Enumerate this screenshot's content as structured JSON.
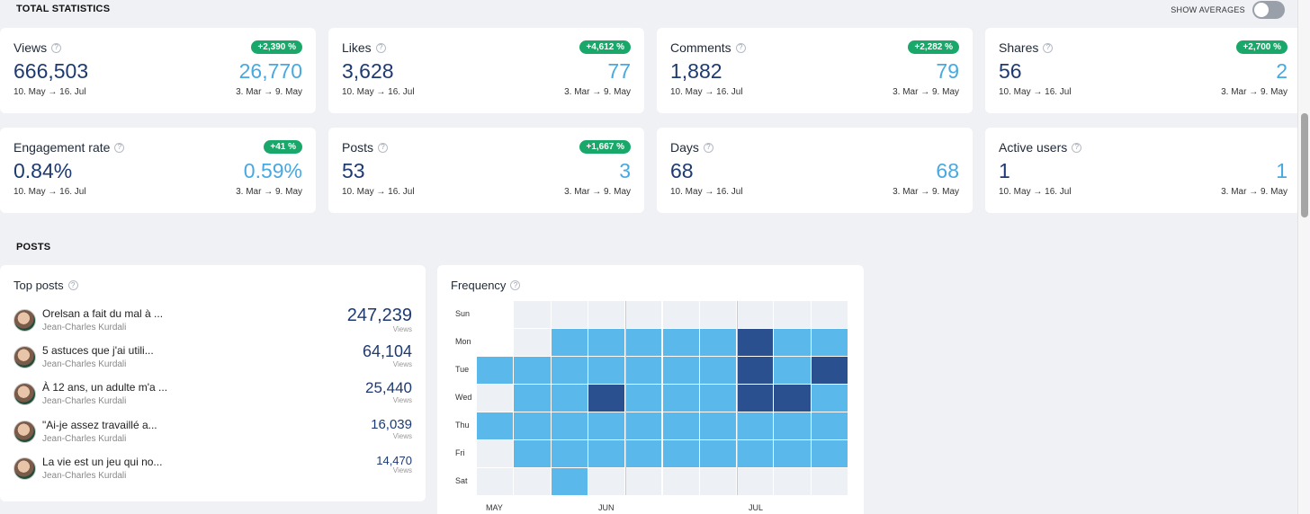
{
  "header": {
    "section_total": "TOTAL STATISTICS",
    "show_averages_label": "SHOW AVERAGES",
    "show_averages_on": false
  },
  "stats": [
    {
      "label": "Views",
      "badge": "+2,390 %",
      "value": "666,503",
      "prev_value": "26,770",
      "range": "10. May → 16. Jul",
      "prev_range": "3. Mar → 9. May"
    },
    {
      "label": "Likes",
      "badge": "+4,612 %",
      "value": "3,628",
      "prev_value": "77",
      "range": "10. May → 16. Jul",
      "prev_range": "3. Mar → 9. May"
    },
    {
      "label": "Comments",
      "badge": "+2,282 %",
      "value": "1,882",
      "prev_value": "79",
      "range": "10. May → 16. Jul",
      "prev_range": "3. Mar → 9. May"
    },
    {
      "label": "Shares",
      "badge": "+2,700 %",
      "value": "56",
      "prev_value": "2",
      "range": "10. May → 16. Jul",
      "prev_range": "3. Mar → 9. May"
    },
    {
      "label": "Engagement rate",
      "badge": "+41 %",
      "value": "0.84%",
      "prev_value": "0.59%",
      "range": "10. May → 16. Jul",
      "prev_range": "3. Mar → 9. May"
    },
    {
      "label": "Posts",
      "badge": "+1,667 %",
      "value": "53",
      "prev_value": "3",
      "range": "10. May → 16. Jul",
      "prev_range": "3. Mar → 9. May"
    },
    {
      "label": "Days",
      "badge": "",
      "value": "68",
      "prev_value": "68",
      "range": "10. May → 16. Jul",
      "prev_range": "3. Mar → 9. May"
    },
    {
      "label": "Active users",
      "badge": "",
      "value": "1",
      "prev_value": "1",
      "range": "10. May → 16. Jul",
      "prev_range": "3. Mar → 9. May"
    }
  ],
  "posts_section": {
    "title": "POSTS",
    "top_posts_title": "Top posts",
    "views_label": "Views",
    "items": [
      {
        "title": "Orelsan a fait du mal à ...",
        "author": "Jean-Charles Kurdali",
        "views": "247,239"
      },
      {
        "title": "5 astuces que j'ai utili...",
        "author": "Jean-Charles Kurdali",
        "views": "64,104"
      },
      {
        "title": "À 12 ans, un adulte m'a ...",
        "author": "Jean-Charles Kurdali",
        "views": "25,440"
      },
      {
        "title": "\"Ai-je assez travaillé a...",
        "author": "Jean-Charles Kurdali",
        "views": "16,039"
      },
      {
        "title": "La vie est un jeu qui no...",
        "author": "Jean-Charles Kurdali",
        "views": "14,470"
      }
    ]
  },
  "frequency": {
    "title": "Frequency",
    "days": [
      "Sun",
      "Mon",
      "Tue",
      "Wed",
      "Thu",
      "Fri",
      "Sat"
    ],
    "months": [
      "MAY",
      "JUN",
      "JUL"
    ],
    "colors": {
      "0": "#edf0f4",
      "1": "#5bb8ea",
      "2": "#2a5090"
    },
    "grid": [
      [
        null,
        0,
        0,
        0,
        0,
        0,
        0,
        0,
        0,
        0
      ],
      [
        null,
        0,
        1,
        1,
        1,
        1,
        1,
        2,
        1,
        1
      ],
      [
        1,
        1,
        1,
        1,
        1,
        1,
        1,
        2,
        1,
        2
      ],
      [
        0,
        1,
        1,
        2,
        1,
        1,
        1,
        2,
        2,
        1
      ],
      [
        1,
        1,
        1,
        1,
        1,
        1,
        1,
        1,
        1,
        1
      ],
      [
        0,
        1,
        1,
        1,
        1,
        1,
        1,
        1,
        1,
        1
      ],
      [
        0,
        0,
        1,
        0,
        0,
        0,
        0,
        0,
        0,
        0
      ]
    ]
  },
  "colors": {
    "badge_green": "#1aa86a",
    "value_dark": "#1e3a72",
    "value_light": "#47a9e0"
  }
}
